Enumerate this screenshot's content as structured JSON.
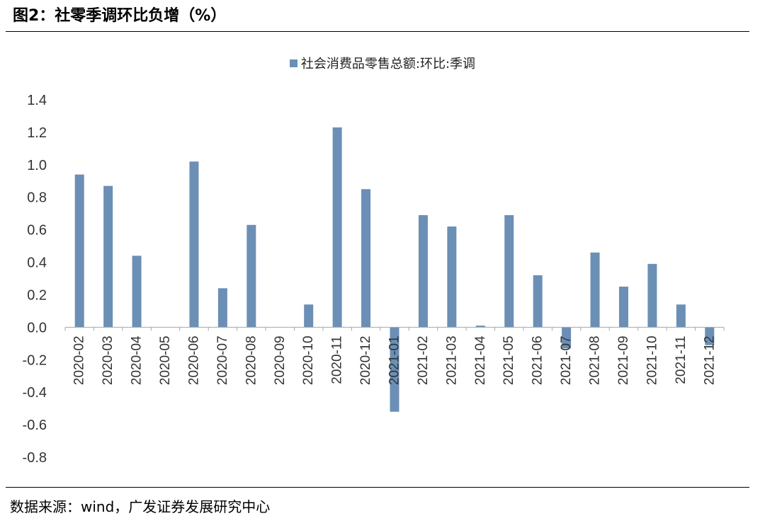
{
  "header": {
    "title": "图2：社零季调环比负增（%）"
  },
  "footer": {
    "source": "数据来源：wind，广发证券发展研究中心"
  },
  "chart_data": {
    "type": "bar",
    "title": "",
    "xlabel": "",
    "ylabel": "",
    "ylim": [
      -0.8,
      1.4
    ],
    "yticks": [
      "1.4",
      "1.2",
      "1.0",
      "0.8",
      "0.6",
      "0.4",
      "0.2",
      "0.0",
      "-0.2",
      "-0.4",
      "-0.6",
      "-0.8"
    ],
    "legend_position": "top-center",
    "grid": false,
    "categories": [
      "2020-02",
      "2020-03",
      "2020-04",
      "2020-05",
      "2020-06",
      "2020-07",
      "2020-08",
      "2020-09",
      "2020-10",
      "2020-11",
      "2020-12",
      "2021-01",
      "2021-02",
      "2021-03",
      "2021-04",
      "2021-05",
      "2021-06",
      "2021-07",
      "2021-08",
      "2021-09",
      "2021-10",
      "2021-11",
      "2021-12"
    ],
    "series": [
      {
        "name": "社会消费品零售总额:环比:季调",
        "color": "#6B8FB5",
        "values": [
          0.94,
          0.87,
          0.44,
          0,
          1.02,
          0.24,
          0.63,
          0,
          0.14,
          1.23,
          0.85,
          -0.52,
          0.69,
          0.62,
          0.01,
          0.69,
          0.32,
          -0.13,
          0.46,
          0.25,
          0.39,
          0.14,
          -0.11
        ]
      }
    ]
  }
}
